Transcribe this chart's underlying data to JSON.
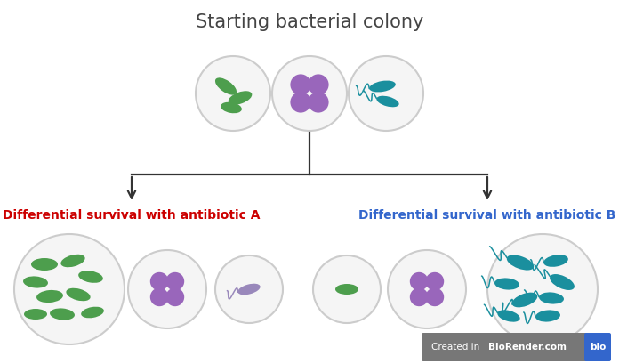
{
  "title": "Starting bacterial colony",
  "label_a": "Differential survival with antibiotic A",
  "label_b": "Differential survival with antibiotic B",
  "label_a_color": "#cc0000",
  "label_b_color": "#3366cc",
  "bg_color": "#ffffff",
  "ellipse_edge_color": "#cccccc",
  "ellipse_face_color": "#f5f5f5",
  "arrow_color": "#333333",
  "biorender_bg": "#777777",
  "biorender_blue": "#3366cc",
  "green_bact": "#4d9e4d",
  "purple_bact": "#9966bb",
  "teal_bact": "#1a8f9e",
  "teal_flagella": "#1a8f9e",
  "lavender_bact": "#9988bb"
}
